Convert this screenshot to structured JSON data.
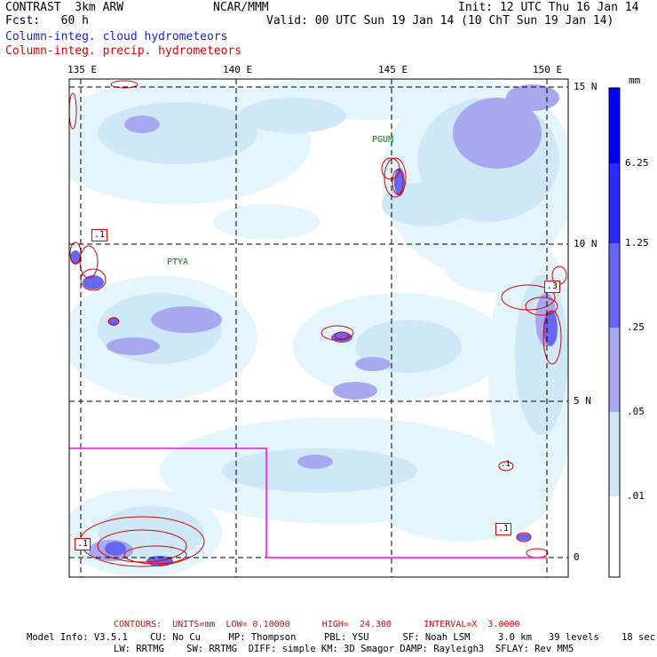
{
  "header": {
    "model": "CONTRAST  3km ARW",
    "center": "NCAR/MMM",
    "init": "Init: 12 UTC Thu 16 Jan 14",
    "fcst": "Fcst:   60 h",
    "valid": "Valid: 00 UTC Sun 19 Jan 14 (10 ChT Sun 19 Jan 14)",
    "field1": "Column-integ. cloud hydrometeors",
    "field2": "Column-integ. precip. hydrometeors"
  },
  "colors": {
    "field1": "#2222cc",
    "field2": "#dd0000",
    "box": "#ff00ff",
    "label_green": "#008800"
  },
  "map": {
    "lon_labels": [
      "135 E",
      "140 E",
      "145 E",
      "150 E"
    ],
    "lat_labels": [
      "15 N",
      "10 N",
      "5 N",
      "0"
    ],
    "places": [
      "PGUM",
      "PTYA"
    ],
    "highs": [
      ".1",
      ".1",
      ".3",
      ".1",
      ".1"
    ]
  },
  "colorbar": {
    "unit": "mm",
    "labels": [
      "6.25",
      "1.25",
      ".25",
      ".05",
      ".01"
    ],
    "colors": [
      "#0000ff",
      "#2a2aff",
      "#6666f0",
      "#a8a8f0",
      "#cfe8f8",
      "#e4f6fb",
      "#ffffff"
    ]
  },
  "footer": {
    "contours_label": "CONTOURS:  UNITS=mm  LOW= 0.10000      HIGH=  24.300      INTERVAL=X  3.0000",
    "model_info_1": "Model Info: V3.5.1    CU: No Cu     MP: Thompson     PBL: YSU      SF: Noah LSM     3.0 km   39 levels    18 sec",
    "model_info_2": "LW: RRTMG    SW: RRTMG  DIFF: simple KM: 3D Smagor DAMP: Rayleigh3  SFLAY: Rev MM5"
  }
}
